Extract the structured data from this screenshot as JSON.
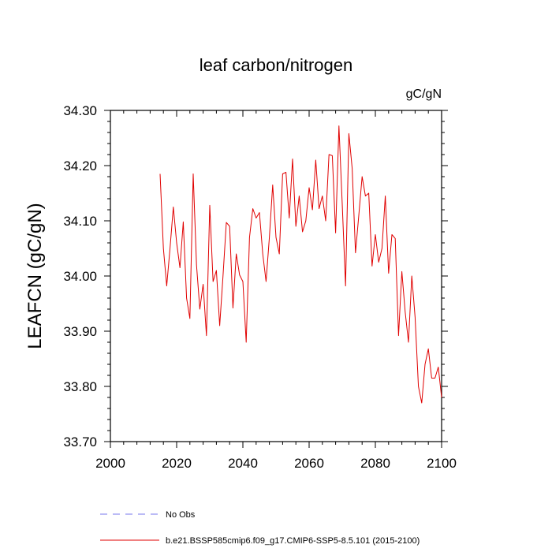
{
  "chart_data": {
    "type": "line",
    "title": "leaf carbon/nitrogen",
    "units_label": "gC/gN",
    "ylabel": "LEAFCN  (gC/gN)",
    "xlabel": "",
    "xlim": [
      2000,
      2100
    ],
    "ylim": [
      33.7,
      34.3
    ],
    "x_ticks": [
      2000,
      2020,
      2040,
      2060,
      2080,
      2100
    ],
    "x_tick_labels": [
      "2000",
      "2020",
      "2040",
      "2060",
      "2080",
      "2100"
    ],
    "y_ticks": [
      33.7,
      33.8,
      33.9,
      34.0,
      34.1,
      34.2,
      34.3
    ],
    "y_tick_labels": [
      "33.70",
      "33.80",
      "33.90",
      "34.00",
      "34.10",
      "34.20",
      "34.30"
    ],
    "grid": false,
    "legend": {
      "placement": "bottom",
      "entries": [
        {
          "label": "No Obs",
          "color": "#7777ee",
          "style": "dashed"
        },
        {
          "label": "b.e21.BSSP585cmip6.f09_g17.CMIP6-SSP5-8.5.101 (2015-2100)",
          "color": "#e00000",
          "style": "solid"
        }
      ]
    },
    "series": [
      {
        "name": "b.e21.BSSP585cmip6.f09_g17.CMIP6-SSP5-8.5.101 (2015-2100)",
        "color": "#e00000",
        "x": [
          2015,
          2016,
          2017,
          2018,
          2019,
          2020,
          2021,
          2022,
          2023,
          2024,
          2025,
          2026,
          2027,
          2028,
          2029,
          2030,
          2031,
          2032,
          2033,
          2034,
          2035,
          2036,
          2037,
          2038,
          2039,
          2040,
          2041,
          2042,
          2043,
          2044,
          2045,
          2046,
          2047,
          2048,
          2049,
          2050,
          2051,
          2052,
          2053,
          2054,
          2055,
          2056,
          2057,
          2058,
          2059,
          2060,
          2061,
          2062,
          2063,
          2064,
          2065,
          2066,
          2067,
          2068,
          2069,
          2070,
          2071,
          2072,
          2073,
          2074,
          2075,
          2076,
          2077,
          2078,
          2079,
          2080,
          2081,
          2082,
          2083,
          2084,
          2085,
          2086,
          2087,
          2088,
          2089,
          2090,
          2091,
          2092,
          2093,
          2094,
          2095,
          2096,
          2097,
          2098,
          2099,
          2100
        ],
        "y": [
          34.185,
          34.05,
          33.982,
          34.05,
          34.125,
          34.06,
          34.015,
          34.098,
          33.96,
          33.923,
          34.185,
          34.02,
          33.94,
          33.985,
          33.892,
          34.128,
          33.99,
          34.01,
          33.91,
          34.0,
          34.097,
          34.09,
          33.942,
          34.04,
          34.002,
          33.99,
          33.88,
          34.07,
          34.122,
          34.105,
          34.115,
          34.04,
          33.99,
          34.07,
          34.165,
          34.07,
          34.04,
          34.185,
          34.188,
          34.105,
          34.212,
          34.09,
          34.145,
          34.08,
          34.1,
          34.16,
          34.12,
          34.21,
          34.122,
          34.145,
          34.1,
          34.22,
          34.218,
          34.078,
          34.272,
          34.13,
          33.982,
          34.258,
          34.195,
          34.042,
          34.11,
          34.18,
          34.145,
          34.15,
          34.018,
          34.075,
          34.025,
          34.05,
          34.145,
          34.005,
          34.075,
          34.068,
          33.892,
          34.008,
          33.935,
          33.88,
          34.0,
          33.925,
          33.8,
          33.77,
          33.84,
          33.868,
          33.815,
          33.815,
          33.835,
          33.78
        ]
      }
    ]
  }
}
